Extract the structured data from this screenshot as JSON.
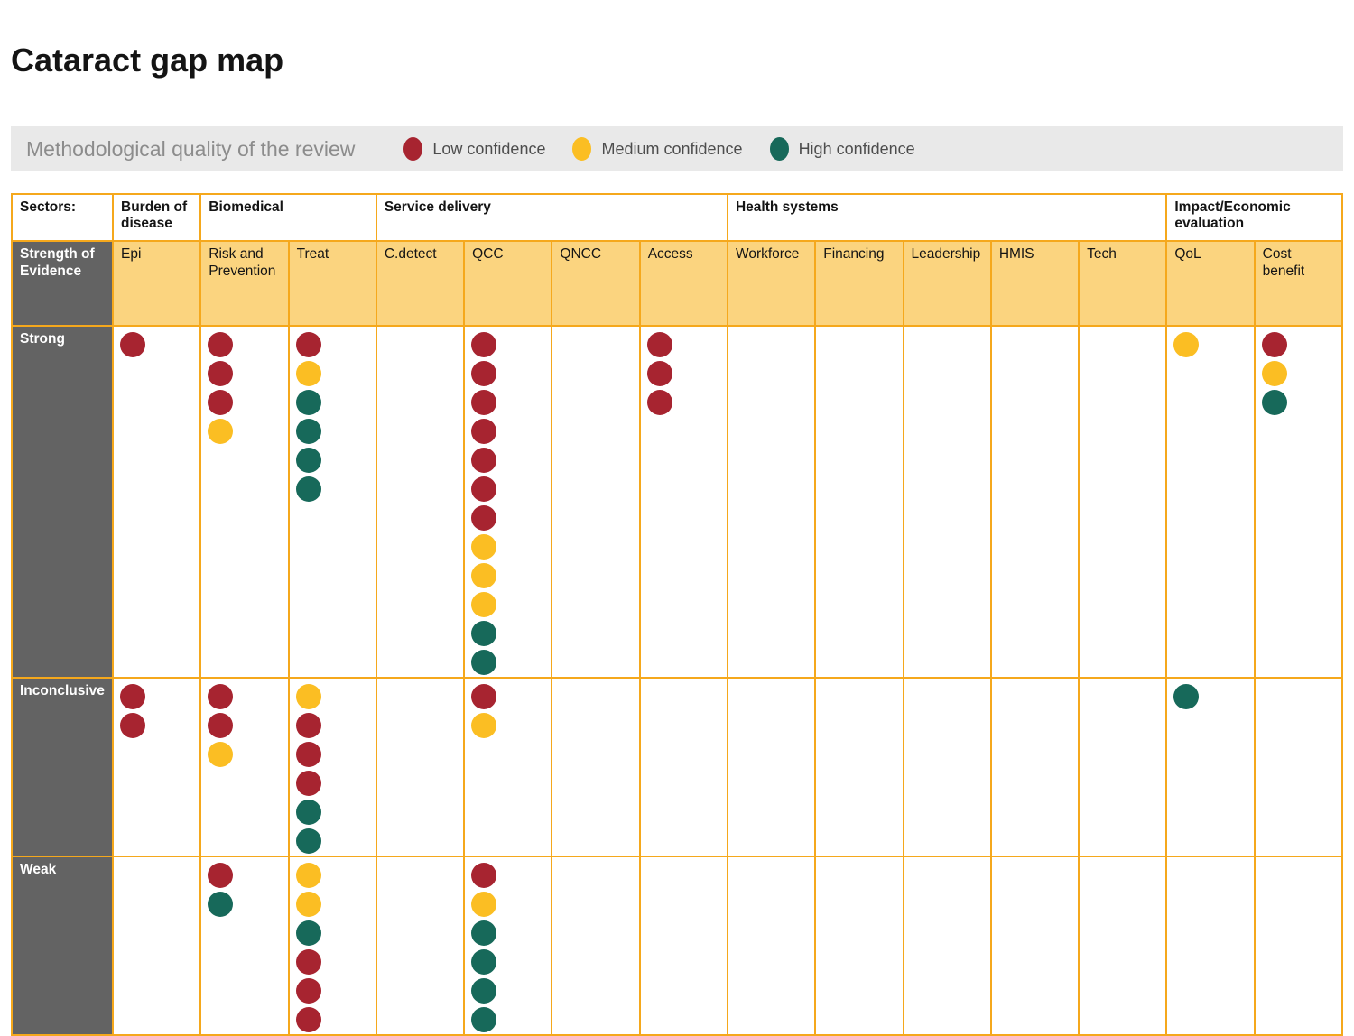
{
  "page": {
    "title": "Cataract gap map"
  },
  "legend": {
    "title": "Methodological quality of the review",
    "items": [
      {
        "key": "red",
        "label": "Low confidence"
      },
      {
        "key": "yellow",
        "label": "Medium confidence"
      },
      {
        "key": "teal",
        "label": "High confidence"
      }
    ]
  },
  "table": {
    "corner_label": "Sectors:",
    "row_header_label": "Strength of Evidence",
    "groups": [
      {
        "label": "Burden of disease",
        "span": 1
      },
      {
        "label": "Biomedical",
        "span": 2
      },
      {
        "label": "Service delivery",
        "span": 4
      },
      {
        "label": "Health systems",
        "span": 5
      },
      {
        "label": "Impact/Economic evaluation",
        "span": 2
      }
    ]
  },
  "chart_data": {
    "type": "table",
    "title": "Cataract gap map",
    "legend_title": "Methodological quality of the review",
    "dot_colors": {
      "red": "#A72430",
      "yellow": "#FBBE23",
      "teal": "#17695A"
    },
    "dot_meaning": {
      "red": "Low confidence",
      "yellow": "Medium confidence",
      "teal": "High confidence"
    },
    "rows": [
      "Strong",
      "Inconclusive",
      "Weak"
    ],
    "columns": [
      "Epi",
      "Risk and Prevention",
      "Treat",
      "C.detect",
      "QCC",
      "QNCC",
      "Access",
      "Workforce",
      "Financing",
      "Leadership",
      "HMIS",
      "Tech",
      "QoL",
      "Cost benefit"
    ],
    "cells": [
      [
        [
          "red"
        ],
        [
          "red",
          "red",
          "red",
          "yellow"
        ],
        [
          "red",
          "yellow",
          "teal",
          "teal",
          "teal",
          "teal"
        ],
        [],
        [
          "red",
          "red",
          "red",
          "red",
          "red",
          "red",
          "red",
          "yellow",
          "yellow",
          "yellow",
          "teal",
          "teal"
        ],
        [],
        [
          "red",
          "red",
          "red"
        ],
        [],
        [],
        [],
        [],
        [],
        [
          "yellow"
        ],
        [
          "red",
          "yellow",
          "teal"
        ]
      ],
      [
        [
          "red",
          "red"
        ],
        [
          "red",
          "red",
          "yellow"
        ],
        [
          "yellow",
          "red",
          "red",
          "red",
          "teal",
          "teal"
        ],
        [],
        [
          "red",
          "yellow"
        ],
        [],
        [],
        [],
        [],
        [],
        [],
        [],
        [
          "teal"
        ],
        []
      ],
      [
        [],
        [
          "red",
          "teal"
        ],
        [
          "yellow",
          "yellow",
          "teal",
          "red",
          "red",
          "red"
        ],
        [],
        [
          "red",
          "yellow",
          "teal",
          "teal",
          "teal",
          "teal"
        ],
        [],
        [],
        [],
        [],
        [],
        [],
        [],
        [],
        []
      ]
    ]
  }
}
